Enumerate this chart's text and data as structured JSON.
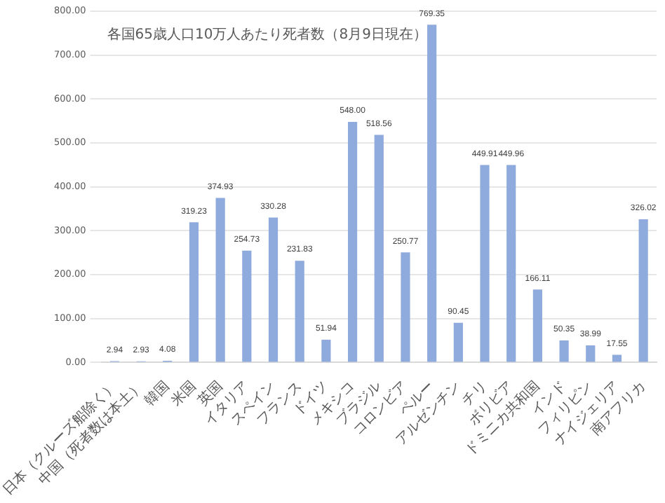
{
  "chart_data": {
    "type": "bar",
    "title": "各国65歳人口10万人あたり死者数（8月9日現在）",
    "categories": [
      "日本（クルーズ船除く）",
      "中国（死者数は本土）",
      "韓国",
      "米国",
      "英国",
      "イタリア",
      "スペイン",
      "フランス",
      "ドイツ",
      "メキシコ",
      "ブラジル",
      "コロンビア",
      "ペルー",
      "アルゼンチン",
      "チリ",
      "ボリビア",
      "ドミニカ共和国",
      "インド",
      "フィリピン",
      "ナイジェリア",
      "南アフリカ"
    ],
    "values": [
      2.94,
      2.93,
      4.08,
      319.23,
      374.93,
      254.73,
      330.28,
      231.83,
      51.94,
      548.0,
      518.56,
      250.77,
      769.35,
      90.45,
      449.91,
      449.96,
      166.11,
      50.35,
      38.99,
      17.55,
      326.02
    ],
    "value_labels": [
      "2.94",
      "2.93",
      "4.08",
      "319.23",
      "374.93",
      "254.73",
      "330.28",
      "231.83",
      "51.94",
      "548.00",
      "518.56",
      "250.77",
      "769.35",
      "90.45",
      "449.91",
      "449.96",
      "166.11",
      "50.35",
      "38.99",
      "17.55",
      "326.02"
    ],
    "color": "#8faadc",
    "grid": "y",
    "legend": false,
    "ylim": [
      0,
      800
    ],
    "yticks": [
      {
        "value": 0,
        "label": "0.00"
      },
      {
        "value": 100,
        "label": "100.00"
      },
      {
        "value": 200,
        "label": "200.00"
      },
      {
        "value": 300,
        "label": "300.00"
      },
      {
        "value": 400,
        "label": "400.00"
      },
      {
        "value": 500,
        "label": "500.00"
      },
      {
        "value": 600,
        "label": "600.00"
      },
      {
        "value": 700,
        "label": "700.00"
      },
      {
        "value": 800,
        "label": "800.00"
      }
    ]
  }
}
